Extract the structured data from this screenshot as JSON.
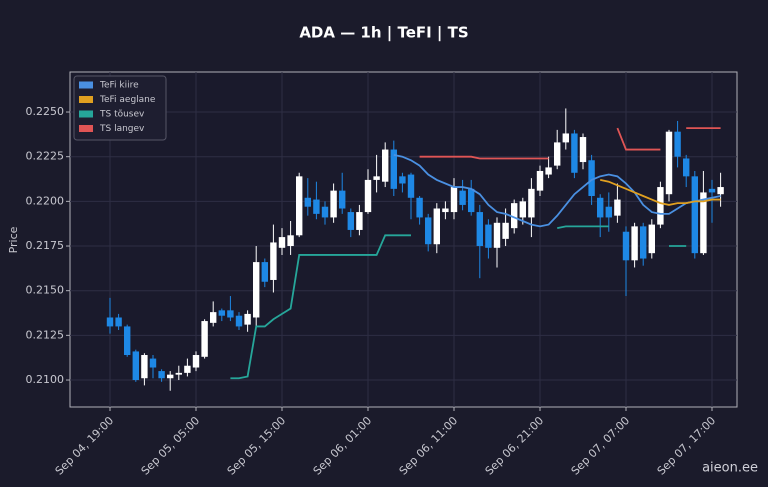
{
  "chart_data": {
    "type": "candlestick",
    "title": "ADA — 1h  |  TeFI  |  TS",
    "ylabel": "Price",
    "watermark": "aieon.ee",
    "x": [
      "Sep 04, 19:00",
      "Sep 04, 20:00",
      "Sep 04, 21:00",
      "Sep 04, 22:00",
      "Sep 04, 23:00",
      "Sep 05, 00:00",
      "Sep 05, 01:00",
      "Sep 05, 02:00",
      "Sep 05, 03:00",
      "Sep 05, 04:00",
      "Sep 05, 05:00",
      "Sep 05, 06:00",
      "Sep 05, 07:00",
      "Sep 05, 08:00",
      "Sep 05, 09:00",
      "Sep 05, 10:00",
      "Sep 05, 11:00",
      "Sep 05, 12:00",
      "Sep 05, 13:00",
      "Sep 05, 14:00",
      "Sep 05, 15:00",
      "Sep 05, 16:00",
      "Sep 05, 17:00",
      "Sep 05, 18:00",
      "Sep 05, 19:00",
      "Sep 05, 20:00",
      "Sep 05, 21:00",
      "Sep 05, 22:00",
      "Sep 05, 23:00",
      "Sep 06, 00:00",
      "Sep 06, 01:00",
      "Sep 06, 02:00",
      "Sep 06, 03:00",
      "Sep 06, 04:00",
      "Sep 06, 05:00",
      "Sep 06, 06:00",
      "Sep 06, 07:00",
      "Sep 06, 08:00",
      "Sep 06, 09:00",
      "Sep 06, 10:00",
      "Sep 06, 11:00",
      "Sep 06, 12:00",
      "Sep 06, 13:00",
      "Sep 06, 14:00",
      "Sep 06, 15:00",
      "Sep 06, 16:00",
      "Sep 06, 17:00",
      "Sep 06, 18:00",
      "Sep 06, 19:00",
      "Sep 06, 20:00",
      "Sep 06, 21:00",
      "Sep 06, 22:00",
      "Sep 06, 23:00",
      "Sep 07, 00:00",
      "Sep 07, 01:00",
      "Sep 07, 02:00",
      "Sep 07, 03:00",
      "Sep 07, 04:00",
      "Sep 07, 05:00",
      "Sep 07, 06:00",
      "Sep 07, 07:00",
      "Sep 07, 08:00",
      "Sep 07, 09:00",
      "Sep 07, 10:00",
      "Sep 07, 11:00",
      "Sep 07, 12:00",
      "Sep 07, 13:00",
      "Sep 07, 14:00",
      "Sep 07, 15:00",
      "Sep 07, 16:00",
      "Sep 07, 17:00",
      "Sep 07, 18:00"
    ],
    "open": [
      0.2135,
      0.2135,
      0.213,
      0.2116,
      0.2101,
      0.2112,
      0.2105,
      0.2101,
      0.2103,
      0.2104,
      0.2107,
      0.2113,
      0.2132,
      0.2139,
      0.2139,
      0.2136,
      0.2131,
      0.2135,
      0.2166,
      0.2156,
      0.2174,
      0.2175,
      0.2181,
      0.2202,
      0.2201,
      0.2197,
      0.2191,
      0.2206,
      0.2194,
      0.2184,
      0.2194,
      0.2212,
      0.2211,
      0.2229,
      0.2214,
      0.2215,
      0.2202,
      0.2191,
      0.2176,
      0.2194,
      0.2194,
      0.2206,
      0.2207,
      0.2194,
      0.2187,
      0.2174,
      0.2179,
      0.2185,
      0.2191,
      0.2191,
      0.2206,
      0.2215,
      0.222,
      0.2233,
      0.2238,
      0.2222,
      0.2223,
      0.2202,
      0.2197,
      0.2192,
      0.2183,
      0.2167,
      0.2186,
      0.2171,
      0.2187,
      0.2204,
      0.2239,
      0.2224,
      0.2214,
      0.2171,
      0.2207,
      0.2204
    ],
    "high": [
      0.2146,
      0.2137,
      0.2131,
      0.2117,
      0.2115,
      0.2114,
      0.2106,
      0.2105,
      0.2108,
      0.2112,
      0.2116,
      0.2134,
      0.2144,
      0.214,
      0.2147,
      0.2138,
      0.2139,
      0.2175,
      0.2168,
      0.2187,
      0.2185,
      0.2189,
      0.2216,
      0.2213,
      0.2211,
      0.22,
      0.221,
      0.2216,
      0.2196,
      0.2198,
      0.2218,
      0.2226,
      0.2233,
      0.2234,
      0.2216,
      0.2216,
      0.2203,
      0.2193,
      0.2199,
      0.22,
      0.2213,
      0.2212,
      0.2212,
      0.2198,
      0.219,
      0.2191,
      0.2196,
      0.2201,
      0.2202,
      0.2213,
      0.222,
      0.2225,
      0.224,
      0.2252,
      0.224,
      0.2238,
      0.2226,
      0.2204,
      0.2205,
      0.221,
      0.2186,
      0.2188,
      0.2188,
      0.219,
      0.2211,
      0.224,
      0.2245,
      0.2226,
      0.2217,
      0.2217,
      0.2212,
      0.2216
    ],
    "low": [
      0.2126,
      0.2128,
      0.2113,
      0.2099,
      0.2097,
      0.2101,
      0.2099,
      0.2094,
      0.21,
      0.2102,
      0.2105,
      0.2112,
      0.213,
      0.2133,
      0.2133,
      0.2128,
      0.2127,
      0.213,
      0.2152,
      0.2149,
      0.217,
      0.217,
      0.218,
      0.2192,
      0.219,
      0.2187,
      0.2188,
      0.2193,
      0.218,
      0.2181,
      0.2193,
      0.2205,
      0.2208,
      0.2203,
      0.2205,
      0.219,
      0.2187,
      0.2172,
      0.2171,
      0.219,
      0.219,
      0.2195,
      0.2192,
      0.2157,
      0.2168,
      0.2163,
      0.2175,
      0.2182,
      0.2187,
      0.218,
      0.2203,
      0.2213,
      0.2218,
      0.2229,
      0.2213,
      0.2218,
      0.2198,
      0.218,
      0.2183,
      0.2188,
      0.2147,
      0.2163,
      0.2164,
      0.2168,
      0.2185,
      0.22,
      0.2219,
      0.2208,
      0.2168,
      0.217,
      0.2188,
      0.2197
    ],
    "close": [
      0.213,
      0.213,
      0.2114,
      0.21,
      0.2114,
      0.2107,
      0.2101,
      0.2103,
      0.2104,
      0.2108,
      0.2114,
      0.2133,
      0.2138,
      0.2136,
      0.2135,
      0.213,
      0.2137,
      0.2166,
      0.2155,
      0.2177,
      0.218,
      0.2181,
      0.2214,
      0.2197,
      0.2193,
      0.2191,
      0.2206,
      0.2196,
      0.2184,
      0.2194,
      0.2212,
      0.2214,
      0.2229,
      0.2207,
      0.221,
      0.2202,
      0.2191,
      0.2176,
      0.2196,
      0.2196,
      0.2208,
      0.2198,
      0.2194,
      0.2175,
      0.2174,
      0.2188,
      0.2188,
      0.2199,
      0.22,
      0.2207,
      0.2217,
      0.2219,
      0.2233,
      0.2238,
      0.2216,
      0.2236,
      0.2203,
      0.2191,
      0.2191,
      0.2201,
      0.2167,
      0.2186,
      0.2168,
      0.2187,
      0.2208,
      0.2239,
      0.2225,
      0.2214,
      0.2171,
      0.2205,
      0.2205,
      0.2208
    ],
    "up_color": "#ffffff",
    "down_color": "#1e88e5",
    "series": [
      {
        "name": "TeFi kiire",
        "color": "#4a90e2",
        "values": [
          null,
          null,
          null,
          null,
          null,
          null,
          null,
          null,
          null,
          null,
          null,
          null,
          null,
          null,
          null,
          null,
          null,
          null,
          null,
          null,
          null,
          null,
          null,
          null,
          null,
          null,
          null,
          null,
          null,
          null,
          null,
          null,
          null,
          0.2226,
          0.2225,
          0.2223,
          0.222,
          0.2215,
          0.2212,
          0.221,
          0.2208,
          0.2208,
          0.2207,
          0.2204,
          0.2198,
          0.2194,
          0.2193,
          0.2191,
          0.2189,
          0.2187,
          0.2186,
          0.2187,
          0.2192,
          0.2198,
          0.2204,
          0.2208,
          0.2212,
          0.2214,
          0.2215,
          0.2214,
          0.221,
          0.2205,
          0.2198,
          0.2194,
          0.2193,
          0.2193,
          0.2196,
          0.2199,
          0.22,
          0.2201,
          0.2202,
          0.2203
        ]
      },
      {
        "name": "TeFi aeglane",
        "color": "#e0a020",
        "values": [
          null,
          null,
          null,
          null,
          null,
          null,
          null,
          null,
          null,
          null,
          null,
          null,
          null,
          null,
          null,
          null,
          null,
          null,
          null,
          null,
          null,
          null,
          null,
          null,
          null,
          null,
          null,
          null,
          null,
          null,
          null,
          null,
          null,
          null,
          null,
          null,
          null,
          null,
          null,
          null,
          null,
          null,
          null,
          null,
          null,
          null,
          null,
          null,
          null,
          null,
          null,
          null,
          null,
          null,
          null,
          null,
          null,
          0.2212,
          0.2211,
          0.2209,
          0.2207,
          0.2205,
          0.2203,
          0.2201,
          0.2199,
          0.2198,
          0.2199,
          0.2199,
          0.22,
          0.22,
          0.2201,
          0.2201
        ]
      },
      {
        "name": "TS tõusev",
        "color": "#26a69a",
        "values": [
          null,
          null,
          null,
          null,
          null,
          null,
          null,
          null,
          null,
          null,
          null,
          null,
          null,
          null,
          0.2101,
          0.2101,
          0.2102,
          0.213,
          0.213,
          0.2134,
          0.2137,
          0.214,
          0.217,
          0.217,
          0.217,
          0.217,
          0.217,
          0.217,
          0.217,
          0.217,
          0.217,
          0.217,
          0.2181,
          0.2181,
          0.2181,
          0.2181,
          null,
          null,
          null,
          null,
          null,
          null,
          null,
          null,
          null,
          null,
          null,
          null,
          null,
          null,
          null,
          null,
          0.2185,
          0.2186,
          0.2186,
          0.2186,
          0.2186,
          0.2186,
          0.2186,
          null,
          null,
          null,
          null,
          null,
          null,
          0.2175,
          0.2175,
          0.2175,
          null,
          null,
          null,
          null
        ]
      },
      {
        "name": "TS langev",
        "color": "#e05555",
        "values": [
          null,
          null,
          null,
          null,
          null,
          null,
          null,
          null,
          null,
          null,
          null,
          null,
          null,
          null,
          null,
          null,
          null,
          null,
          null,
          null,
          null,
          null,
          null,
          null,
          null,
          null,
          null,
          null,
          null,
          null,
          null,
          null,
          null,
          null,
          null,
          null,
          0.2225,
          0.2225,
          0.2225,
          0.2225,
          0.2225,
          0.2225,
          0.2225,
          0.2224,
          0.2224,
          0.2224,
          0.2224,
          0.2224,
          0.2224,
          0.2224,
          0.2224,
          0.2224,
          null,
          null,
          null,
          null,
          null,
          null,
          null,
          0.2241,
          0.2229,
          0.2229,
          0.2229,
          0.2229,
          0.2229,
          null,
          null,
          0.2241,
          0.2241,
          0.2241,
          0.2241,
          0.2241
        ]
      }
    ],
    "xticks": [
      "Sep 04, 19:00",
      "Sep 05, 05:00",
      "Sep 05, 15:00",
      "Sep 06, 01:00",
      "Sep 06, 11:00",
      "Sep 06, 21:00",
      "Sep 07, 07:00",
      "Sep 07, 17:00"
    ],
    "ylim": [
      0.20849,
      0.22724
    ],
    "yticks": [
      {
        "value": 0.21,
        "label": "0.2100"
      },
      {
        "value": 0.2125,
        "label": "0.2125"
      },
      {
        "value": 0.215,
        "label": "0.2150"
      },
      {
        "value": 0.2175,
        "label": "0.2175"
      },
      {
        "value": 0.22,
        "label": "0.2200"
      },
      {
        "value": 0.2225,
        "label": "0.2225"
      },
      {
        "value": 0.225,
        "label": "0.2250"
      }
    ],
    "grid": true,
    "legend": "upper left"
  }
}
